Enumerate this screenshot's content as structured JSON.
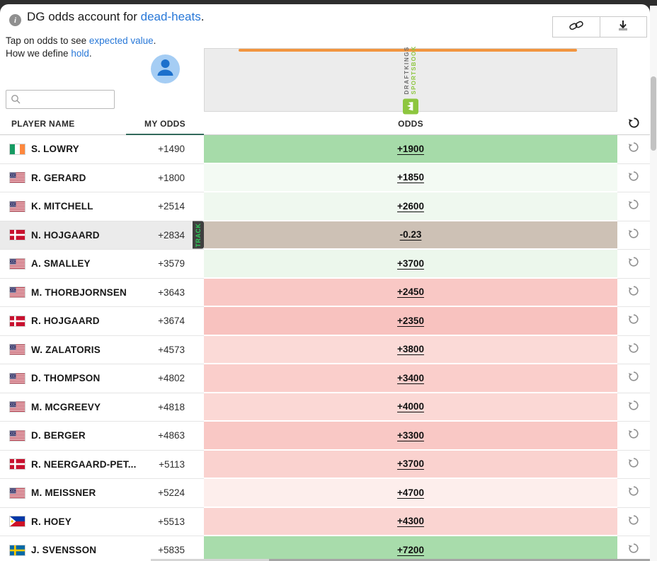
{
  "header": {
    "info_icon": "i",
    "title_prefix": "DG odds account for ",
    "title_link": "dead-heats",
    "title_suffix": ".",
    "line2_prefix": "Tap on odds to see ",
    "line2_link": "expected value",
    "line2_suffix": ".",
    "line3_prefix": "How we define ",
    "line3_link": "hold",
    "line3_suffix": "."
  },
  "search": {
    "value": "",
    "placeholder": ""
  },
  "book": {
    "name_line1": "DRAFTKINGS",
    "name_line2": "SPORTSBOOK",
    "accent_color": "#f2953f",
    "brand_green": "#8dc63f"
  },
  "table": {
    "columns": {
      "player": "PLAYER NAME",
      "my_odds": "MY ODDS",
      "odds": "ODDS"
    },
    "my_odds_underline_color": "#336a5b",
    "track_label": "TRACK",
    "selected_row_bg": "#ebebeb",
    "rows": [
      {
        "flag": "ie",
        "name": "S. LOWRY",
        "my_odds": "+1490",
        "odds": "+1900",
        "odds_bg": "#a6dba9",
        "selected": false
      },
      {
        "flag": "us",
        "name": "R. GERARD",
        "my_odds": "+1800",
        "odds": "+1850",
        "odds_bg": "#f3faf3",
        "selected": false
      },
      {
        "flag": "us",
        "name": "K. MITCHELL",
        "my_odds": "+2514",
        "odds": "+2600",
        "odds_bg": "#eff8ef",
        "selected": false
      },
      {
        "flag": "dk",
        "name": "N. HOJGAARD",
        "my_odds": "+2834",
        "odds": "-0.23",
        "odds_bg": "#cdc1b5",
        "selected": true
      },
      {
        "flag": "us",
        "name": "A. SMALLEY",
        "my_odds": "+3579",
        "odds": "+3700",
        "odds_bg": "#ecf7ec",
        "selected": false
      },
      {
        "flag": "us",
        "name": "M. THORBJORNSEN",
        "my_odds": "+3643",
        "odds": "+2450",
        "odds_bg": "#f9c8c5",
        "selected": false
      },
      {
        "flag": "dk",
        "name": "R. HOJGAARD",
        "my_odds": "+3674",
        "odds": "+2350",
        "odds_bg": "#f8c2bf",
        "selected": false
      },
      {
        "flag": "us",
        "name": "W. ZALATORIS",
        "my_odds": "+4573",
        "odds": "+3800",
        "odds_bg": "#fbdad7",
        "selected": false
      },
      {
        "flag": "us",
        "name": "D. THOMPSON",
        "my_odds": "+4802",
        "odds": "+3400",
        "odds_bg": "#facecb",
        "selected": false
      },
      {
        "flag": "us",
        "name": "M. MCGREEVY",
        "my_odds": "+4818",
        "odds": "+4000",
        "odds_bg": "#fbd8d5",
        "selected": false
      },
      {
        "flag": "us",
        "name": "D. BERGER",
        "my_odds": "+4863",
        "odds": "+3300",
        "odds_bg": "#f9c8c5",
        "selected": false
      },
      {
        "flag": "dk",
        "name": "R. NEERGAARD-PET...",
        "my_odds": "+5113",
        "odds": "+3700",
        "odds_bg": "#fad2cf",
        "selected": false
      },
      {
        "flag": "us",
        "name": "M. MEISSNER",
        "my_odds": "+5224",
        "odds": "+4700",
        "odds_bg": "#fdeeec",
        "selected": false
      },
      {
        "flag": "ph",
        "name": "R. HOEY",
        "my_odds": "+5513",
        "odds": "+4300",
        "odds_bg": "#fad4d1",
        "selected": false
      },
      {
        "flag": "se",
        "name": "J. SVENSSON",
        "my_odds": "+5835",
        "odds": "+7200",
        "odds_bg": "#a8dcab",
        "selected": false
      }
    ]
  }
}
